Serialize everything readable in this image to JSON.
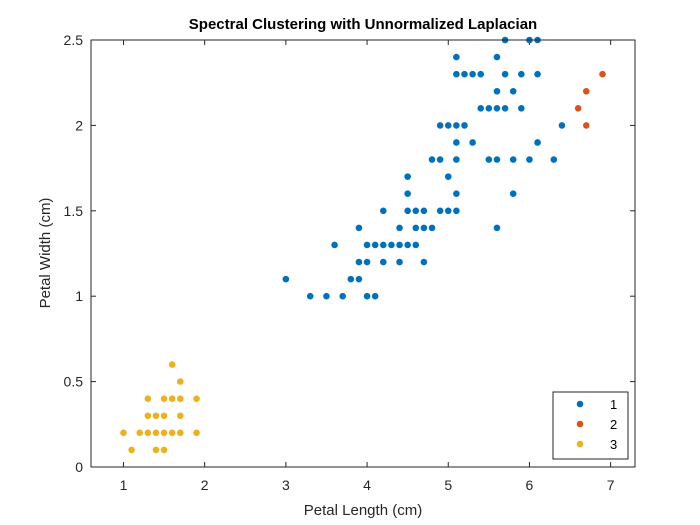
{
  "chart_data": {
    "type": "scatter",
    "title": "Spectral Clustering with Unnormalized Laplacian",
    "xlabel": "Petal Length (cm)",
    "ylabel": "Petal Width (cm)",
    "xlim": [
      0.6,
      7.3
    ],
    "ylim": [
      0,
      2.5
    ],
    "xticks": [
      1,
      2,
      3,
      4,
      5,
      6,
      7
    ],
    "yticks": [
      0,
      0.5,
      1,
      1.5,
      2,
      2.5
    ],
    "xtick_labels": [
      "1",
      "2",
      "3",
      "4",
      "5",
      "6",
      "7"
    ],
    "ytick_labels": [
      "0",
      "0.5",
      "1",
      "1.5",
      "2",
      "2.5"
    ],
    "grid": false,
    "legend_position": "bottom-right",
    "series": [
      {
        "name": "1",
        "color": "#0072BD",
        "points": [
          [
            3.0,
            1.1
          ],
          [
            3.3,
            1.0
          ],
          [
            3.5,
            1.0
          ],
          [
            3.6,
            1.3
          ],
          [
            3.7,
            1.0
          ],
          [
            3.8,
            1.1
          ],
          [
            3.9,
            1.1
          ],
          [
            3.9,
            1.2
          ],
          [
            3.9,
            1.4
          ],
          [
            4.0,
            1.0
          ],
          [
            4.0,
            1.2
          ],
          [
            4.0,
            1.3
          ],
          [
            4.1,
            1.0
          ],
          [
            4.1,
            1.3
          ],
          [
            4.2,
            1.2
          ],
          [
            4.2,
            1.3
          ],
          [
            4.2,
            1.5
          ],
          [
            4.3,
            1.3
          ],
          [
            4.4,
            1.2
          ],
          [
            4.4,
            1.3
          ],
          [
            4.4,
            1.4
          ],
          [
            4.5,
            1.3
          ],
          [
            4.5,
            1.5
          ],
          [
            4.5,
            1.6
          ],
          [
            4.5,
            1.7
          ],
          [
            4.6,
            1.3
          ],
          [
            4.6,
            1.4
          ],
          [
            4.6,
            1.5
          ],
          [
            4.7,
            1.2
          ],
          [
            4.7,
            1.4
          ],
          [
            4.7,
            1.5
          ],
          [
            4.8,
            1.4
          ],
          [
            4.8,
            1.8
          ],
          [
            4.9,
            1.5
          ],
          [
            4.9,
            1.8
          ],
          [
            4.9,
            2.0
          ],
          [
            5.0,
            1.5
          ],
          [
            5.0,
            1.7
          ],
          [
            5.0,
            2.0
          ],
          [
            5.1,
            1.5
          ],
          [
            5.1,
            1.6
          ],
          [
            5.1,
            1.8
          ],
          [
            5.1,
            1.9
          ],
          [
            5.1,
            2.0
          ],
          [
            5.1,
            2.3
          ],
          [
            5.1,
            2.4
          ],
          [
            5.2,
            2.0
          ],
          [
            5.2,
            2.3
          ],
          [
            5.3,
            1.9
          ],
          [
            5.3,
            2.3
          ],
          [
            5.4,
            2.1
          ],
          [
            5.4,
            2.3
          ],
          [
            5.5,
            1.8
          ],
          [
            5.5,
            2.1
          ],
          [
            5.6,
            1.4
          ],
          [
            5.6,
            1.8
          ],
          [
            5.6,
            2.1
          ],
          [
            5.6,
            2.2
          ],
          [
            5.6,
            2.4
          ],
          [
            5.7,
            2.1
          ],
          [
            5.7,
            2.3
          ],
          [
            5.7,
            2.5
          ],
          [
            5.8,
            1.6
          ],
          [
            5.8,
            1.8
          ],
          [
            5.8,
            2.2
          ],
          [
            5.9,
            2.1
          ],
          [
            5.9,
            2.3
          ],
          [
            6.0,
            1.8
          ],
          [
            6.0,
            2.5
          ],
          [
            6.1,
            1.9
          ],
          [
            6.1,
            2.3
          ],
          [
            6.1,
            2.5
          ],
          [
            6.3,
            1.8
          ],
          [
            6.4,
            2.0
          ]
        ]
      },
      {
        "name": "2",
        "color": "#D95319",
        "points": [
          [
            6.6,
            2.1
          ],
          [
            6.7,
            2.0
          ],
          [
            6.7,
            2.2
          ],
          [
            6.9,
            2.3
          ]
        ]
      },
      {
        "name": "3",
        "color": "#EDB120",
        "points": [
          [
            1.0,
            0.2
          ],
          [
            1.1,
            0.1
          ],
          [
            1.2,
            0.2
          ],
          [
            1.3,
            0.2
          ],
          [
            1.3,
            0.3
          ],
          [
            1.3,
            0.4
          ],
          [
            1.4,
            0.1
          ],
          [
            1.4,
            0.2
          ],
          [
            1.4,
            0.3
          ],
          [
            1.5,
            0.1
          ],
          [
            1.5,
            0.2
          ],
          [
            1.5,
            0.3
          ],
          [
            1.5,
            0.4
          ],
          [
            1.6,
            0.2
          ],
          [
            1.6,
            0.4
          ],
          [
            1.6,
            0.6
          ],
          [
            1.7,
            0.2
          ],
          [
            1.7,
            0.3
          ],
          [
            1.7,
            0.4
          ],
          [
            1.7,
            0.5
          ],
          [
            1.9,
            0.2
          ],
          [
            1.9,
            0.4
          ]
        ]
      }
    ]
  }
}
